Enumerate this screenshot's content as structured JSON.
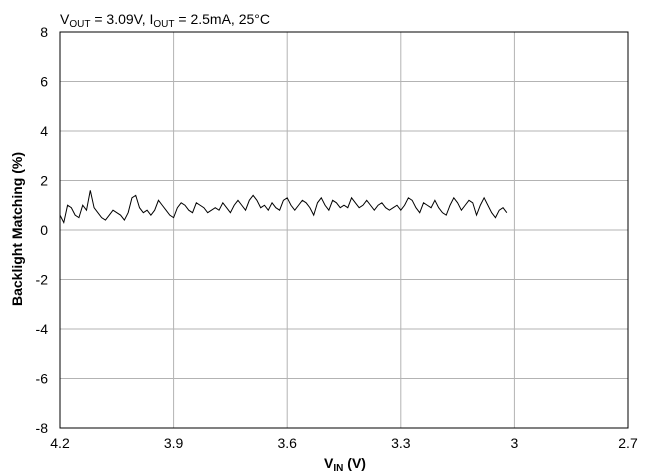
{
  "chart_data": {
    "type": "line",
    "title": {
      "v_main": "V",
      "v_sub": "OUT",
      "v_rest": " = 3.09V, I",
      "i_sub": "OUT",
      "i_rest": " = 2.5mA, 25°C"
    },
    "xlabel": {
      "main": "V",
      "sub": "IN",
      "rest": " (V)"
    },
    "ylabel": "Backlight Matching (%)",
    "xlim": [
      4.2,
      2.7
    ],
    "ylim": [
      -8,
      8
    ],
    "xticks": [
      4.2,
      3.9,
      3.6,
      3.3,
      3.0,
      2.7
    ],
    "xtick_labels": [
      "4.2",
      "3.9",
      "3.6",
      "3.3",
      "3",
      "2.7"
    ],
    "yticks": [
      -8,
      -6,
      -4,
      -2,
      0,
      2,
      4,
      6,
      8
    ],
    "ytick_labels": [
      "-8",
      "-6",
      "-4",
      "-2",
      "0",
      "2",
      "4",
      "6",
      "8"
    ],
    "grid": true,
    "series": [
      {
        "color": "#000000",
        "x_start": 4.2,
        "x_step": -0.01,
        "values": [
          0.6,
          0.3,
          1.0,
          0.9,
          0.6,
          0.5,
          1.0,
          0.8,
          1.6,
          0.9,
          0.7,
          0.5,
          0.4,
          0.6,
          0.8,
          0.7,
          0.6,
          0.4,
          0.7,
          1.3,
          1.4,
          0.9,
          0.7,
          0.8,
          0.6,
          0.8,
          1.2,
          1.0,
          0.8,
          0.6,
          0.5,
          0.9,
          1.1,
          1.0,
          0.8,
          0.7,
          1.1,
          1.0,
          0.9,
          0.7,
          0.8,
          0.9,
          0.8,
          1.1,
          0.9,
          0.7,
          1.0,
          1.2,
          1.0,
          0.8,
          1.2,
          1.4,
          1.2,
          0.9,
          1.0,
          0.8,
          1.1,
          0.9,
          0.8,
          1.2,
          1.3,
          1.0,
          0.8,
          1.0,
          1.2,
          1.1,
          0.9,
          0.6,
          1.1,
          1.3,
          1.0,
          0.8,
          1.2,
          1.1,
          0.9,
          1.0,
          0.9,
          1.3,
          1.1,
          0.9,
          1.0,
          1.2,
          1.0,
          0.8,
          1.0,
          1.1,
          0.9,
          0.8,
          0.9,
          1.0,
          0.8,
          1.0,
          1.3,
          1.2,
          0.9,
          0.7,
          1.1,
          1.0,
          0.9,
          1.2,
          0.9,
          0.7,
          0.6,
          1.0,
          1.3,
          1.1,
          0.8,
          1.0,
          1.2,
          1.1,
          0.6,
          1.0,
          1.3,
          1.0,
          0.7,
          0.5,
          0.8,
          0.9,
          0.7
        ]
      }
    ]
  }
}
